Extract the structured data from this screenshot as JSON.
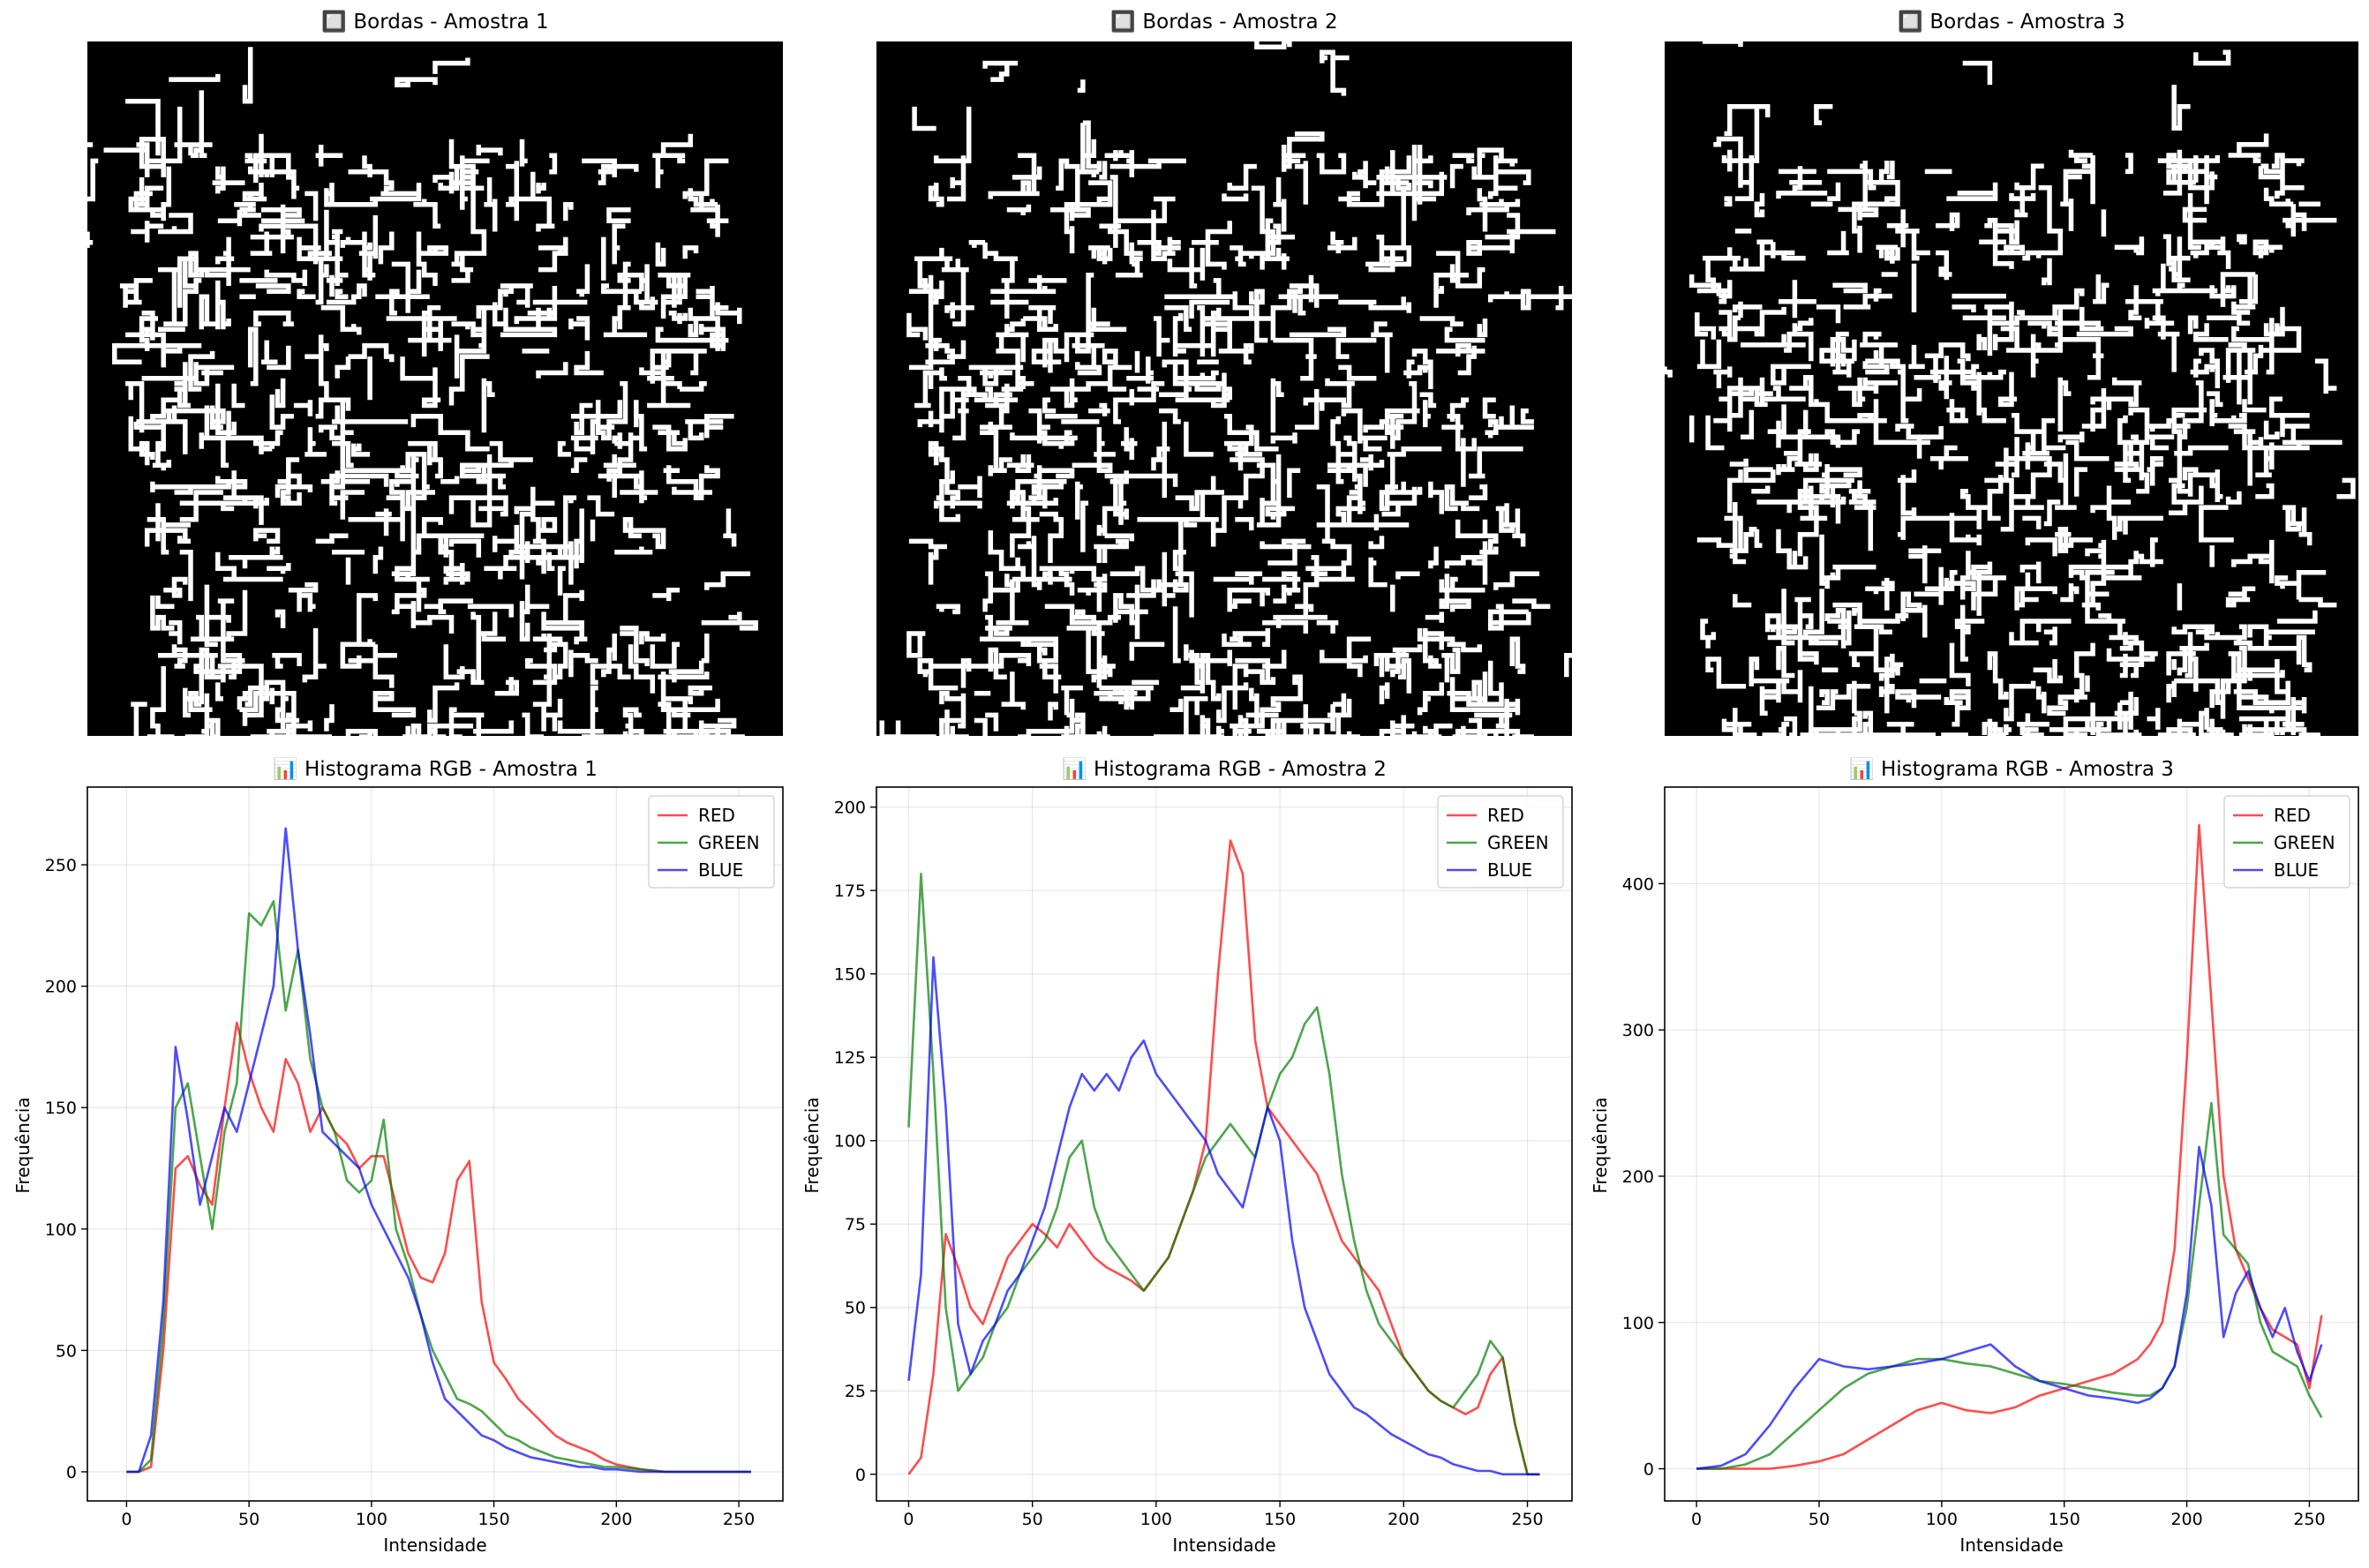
{
  "edge_panels": [
    {
      "title": "🔲 Bordas - Amostra 1",
      "seed": 11
    },
    {
      "title": "🔲 Bordas - Amostra 2",
      "seed": 23
    },
    {
      "title": "🔲 Bordas - Amostra 3",
      "seed": 37
    }
  ],
  "colors": {
    "RED": "#ff0000",
    "GREEN": "#008000",
    "BLUE": "#0000ff",
    "edge_bg": "#000000",
    "edge_fg": "#ffffff"
  },
  "chart_data": [
    {
      "type": "line",
      "title": "📊 Histograma RGB - Amostra 1",
      "xlabel": "Intensidade",
      "ylabel": "Frequência",
      "xlim": [
        -16,
        268
      ],
      "ylim": [
        -12,
        282
      ],
      "xticks": [
        0,
        50,
        100,
        150,
        200,
        250
      ],
      "yticks": [
        0,
        50,
        100,
        150,
        200,
        250
      ],
      "grid": true,
      "legend_position": "top-right",
      "series": [
        {
          "name": "RED",
          "color": "#ff0000",
          "x": [
            0,
            5,
            10,
            15,
            20,
            25,
            30,
            35,
            40,
            45,
            50,
            55,
            60,
            65,
            70,
            75,
            80,
            85,
            90,
            95,
            100,
            105,
            110,
            115,
            120,
            125,
            130,
            135,
            140,
            145,
            150,
            155,
            160,
            165,
            170,
            175,
            180,
            185,
            190,
            195,
            200,
            210,
            220,
            230,
            240,
            255
          ],
          "values": [
            0,
            0,
            2,
            50,
            125,
            130,
            118,
            110,
            150,
            185,
            165,
            150,
            140,
            170,
            160,
            140,
            150,
            140,
            135,
            125,
            130,
            130,
            110,
            90,
            80,
            78,
            90,
            120,
            128,
            70,
            45,
            38,
            30,
            25,
            20,
            15,
            12,
            10,
            8,
            5,
            3,
            1,
            0,
            0,
            0,
            0
          ]
        },
        {
          "name": "GREEN",
          "color": "#008000",
          "x": [
            0,
            5,
            10,
            15,
            20,
            25,
            30,
            35,
            40,
            45,
            50,
            55,
            60,
            65,
            70,
            75,
            80,
            85,
            90,
            95,
            100,
            105,
            110,
            115,
            120,
            125,
            130,
            135,
            140,
            145,
            150,
            155,
            160,
            165,
            170,
            175,
            180,
            185,
            190,
            195,
            200,
            210,
            220,
            230,
            240,
            255
          ],
          "values": [
            0,
            0,
            5,
            60,
            150,
            160,
            130,
            100,
            140,
            160,
            230,
            225,
            235,
            190,
            215,
            170,
            150,
            140,
            120,
            115,
            120,
            145,
            100,
            85,
            65,
            50,
            40,
            30,
            28,
            25,
            20,
            15,
            13,
            10,
            8,
            6,
            5,
            4,
            3,
            2,
            2,
            1,
            0,
            0,
            0,
            0
          ]
        },
        {
          "name": "BLUE",
          "color": "#0000ff",
          "x": [
            0,
            5,
            10,
            15,
            20,
            25,
            30,
            35,
            40,
            45,
            50,
            55,
            60,
            65,
            70,
            75,
            80,
            85,
            90,
            95,
            100,
            105,
            110,
            115,
            120,
            125,
            130,
            135,
            140,
            145,
            150,
            155,
            160,
            165,
            170,
            175,
            180,
            185,
            190,
            195,
            200,
            210,
            220,
            230,
            240,
            255
          ],
          "values": [
            0,
            0,
            15,
            70,
            175,
            145,
            110,
            130,
            150,
            140,
            160,
            180,
            200,
            265,
            215,
            180,
            140,
            135,
            130,
            125,
            110,
            100,
            90,
            80,
            65,
            45,
            30,
            25,
            20,
            15,
            13,
            10,
            8,
            6,
            5,
            4,
            3,
            2,
            2,
            1,
            1,
            0,
            0,
            0,
            0,
            0
          ]
        }
      ]
    },
    {
      "type": "line",
      "title": "📊 Histograma RGB - Amostra 2",
      "xlabel": "Intensidade",
      "ylabel": "Frequência",
      "xlim": [
        -13,
        268
      ],
      "ylim": [
        -8,
        206
      ],
      "xticks": [
        0,
        50,
        100,
        150,
        200,
        250
      ],
      "yticks": [
        0,
        25,
        50,
        75,
        100,
        125,
        150,
        175,
        200
      ],
      "grid": true,
      "legend_position": "top-right",
      "series": [
        {
          "name": "RED",
          "color": "#ff0000",
          "x": [
            0,
            5,
            10,
            15,
            20,
            25,
            30,
            35,
            40,
            45,
            50,
            55,
            60,
            65,
            70,
            75,
            80,
            85,
            90,
            95,
            100,
            105,
            110,
            115,
            120,
            125,
            130,
            135,
            140,
            145,
            150,
            155,
            160,
            165,
            170,
            175,
            180,
            185,
            190,
            195,
            200,
            205,
            210,
            215,
            220,
            225,
            230,
            235,
            240,
            245,
            250,
            255
          ],
          "values": [
            0,
            5,
            30,
            72,
            62,
            50,
            45,
            55,
            65,
            70,
            75,
            72,
            68,
            75,
            70,
            65,
            62,
            60,
            58,
            55,
            60,
            65,
            75,
            85,
            100,
            150,
            190,
            180,
            130,
            110,
            105,
            100,
            95,
            90,
            80,
            70,
            65,
            60,
            55,
            45,
            35,
            30,
            25,
            22,
            20,
            18,
            20,
            30,
            35,
            15,
            0,
            0
          ]
        },
        {
          "name": "GREEN",
          "color": "#008000",
          "x": [
            0,
            5,
            10,
            15,
            20,
            25,
            30,
            35,
            40,
            45,
            50,
            55,
            60,
            65,
            70,
            75,
            80,
            85,
            90,
            95,
            100,
            105,
            110,
            115,
            120,
            125,
            130,
            135,
            140,
            145,
            150,
            155,
            160,
            165,
            170,
            175,
            180,
            185,
            190,
            195,
            200,
            205,
            210,
            215,
            220,
            225,
            230,
            235,
            240,
            245,
            250,
            255
          ],
          "values": [
            104,
            180,
            120,
            50,
            25,
            30,
            35,
            45,
            50,
            60,
            65,
            70,
            80,
            95,
            100,
            80,
            70,
            65,
            60,
            55,
            60,
            65,
            75,
            85,
            95,
            100,
            105,
            100,
            95,
            110,
            120,
            125,
            135,
            140,
            120,
            90,
            70,
            55,
            45,
            40,
            35,
            30,
            25,
            22,
            20,
            25,
            30,
            40,
            35,
            15,
            0,
            0
          ]
        },
        {
          "name": "BLUE",
          "color": "#0000ff",
          "x": [
            0,
            5,
            10,
            15,
            20,
            25,
            30,
            35,
            40,
            45,
            50,
            55,
            60,
            65,
            70,
            75,
            80,
            85,
            90,
            95,
            100,
            105,
            110,
            115,
            120,
            125,
            130,
            135,
            140,
            145,
            150,
            155,
            160,
            165,
            170,
            175,
            180,
            185,
            190,
            195,
            200,
            205,
            210,
            215,
            220,
            225,
            230,
            235,
            240,
            245,
            250,
            255
          ],
          "values": [
            28,
            60,
            155,
            110,
            45,
            30,
            40,
            45,
            55,
            60,
            70,
            80,
            95,
            110,
            120,
            115,
            120,
            115,
            125,
            130,
            120,
            115,
            110,
            105,
            100,
            90,
            85,
            80,
            95,
            110,
            100,
            70,
            50,
            40,
            30,
            25,
            20,
            18,
            15,
            12,
            10,
            8,
            6,
            5,
            3,
            2,
            1,
            1,
            0,
            0,
            0,
            0
          ]
        }
      ]
    },
    {
      "type": "line",
      "title": "📊 Histograma RGB - Amostra 3",
      "xlabel": "Intensidade",
      "ylabel": "Frequência",
      "xlim": [
        -13,
        270
      ],
      "ylim": [
        -22,
        466
      ],
      "xticks": [
        0,
        50,
        100,
        150,
        200,
        250
      ],
      "yticks": [
        0,
        100,
        200,
        300,
        400
      ],
      "grid": true,
      "legend_position": "top-right",
      "series": [
        {
          "name": "RED",
          "color": "#ff0000",
          "x": [
            0,
            10,
            20,
            30,
            40,
            50,
            60,
            70,
            80,
            90,
            100,
            110,
            120,
            130,
            140,
            150,
            160,
            170,
            180,
            185,
            190,
            195,
            200,
            205,
            210,
            215,
            220,
            225,
            230,
            235,
            240,
            245,
            250,
            255
          ],
          "values": [
            0,
            0,
            0,
            0,
            2,
            5,
            10,
            20,
            30,
            40,
            45,
            40,
            38,
            42,
            50,
            55,
            60,
            65,
            75,
            85,
            100,
            150,
            280,
            440,
            320,
            200,
            150,
            130,
            110,
            95,
            90,
            85,
            55,
            105
          ]
        },
        {
          "name": "GREEN",
          "color": "#008000",
          "x": [
            0,
            10,
            20,
            30,
            40,
            50,
            60,
            70,
            80,
            90,
            100,
            110,
            120,
            130,
            140,
            150,
            160,
            170,
            180,
            185,
            190,
            195,
            200,
            205,
            210,
            215,
            220,
            225,
            230,
            235,
            240,
            245,
            250,
            255
          ],
          "values": [
            0,
            0,
            3,
            10,
            25,
            40,
            55,
            65,
            70,
            75,
            75,
            72,
            70,
            65,
            60,
            58,
            55,
            52,
            50,
            50,
            55,
            70,
            110,
            180,
            250,
            160,
            150,
            140,
            100,
            80,
            75,
            70,
            50,
            35
          ]
        },
        {
          "name": "BLUE",
          "color": "#0000ff",
          "x": [
            0,
            10,
            20,
            30,
            40,
            50,
            60,
            70,
            80,
            90,
            100,
            110,
            120,
            130,
            140,
            150,
            160,
            170,
            180,
            185,
            190,
            195,
            200,
            205,
            210,
            215,
            220,
            225,
            230,
            235,
            240,
            245,
            250,
            255
          ],
          "values": [
            0,
            2,
            10,
            30,
            55,
            75,
            70,
            68,
            70,
            72,
            75,
            80,
            85,
            70,
            60,
            55,
            50,
            48,
            45,
            48,
            55,
            70,
            120,
            220,
            180,
            90,
            120,
            135,
            110,
            90,
            110,
            80,
            60,
            85
          ]
        }
      ]
    }
  ]
}
